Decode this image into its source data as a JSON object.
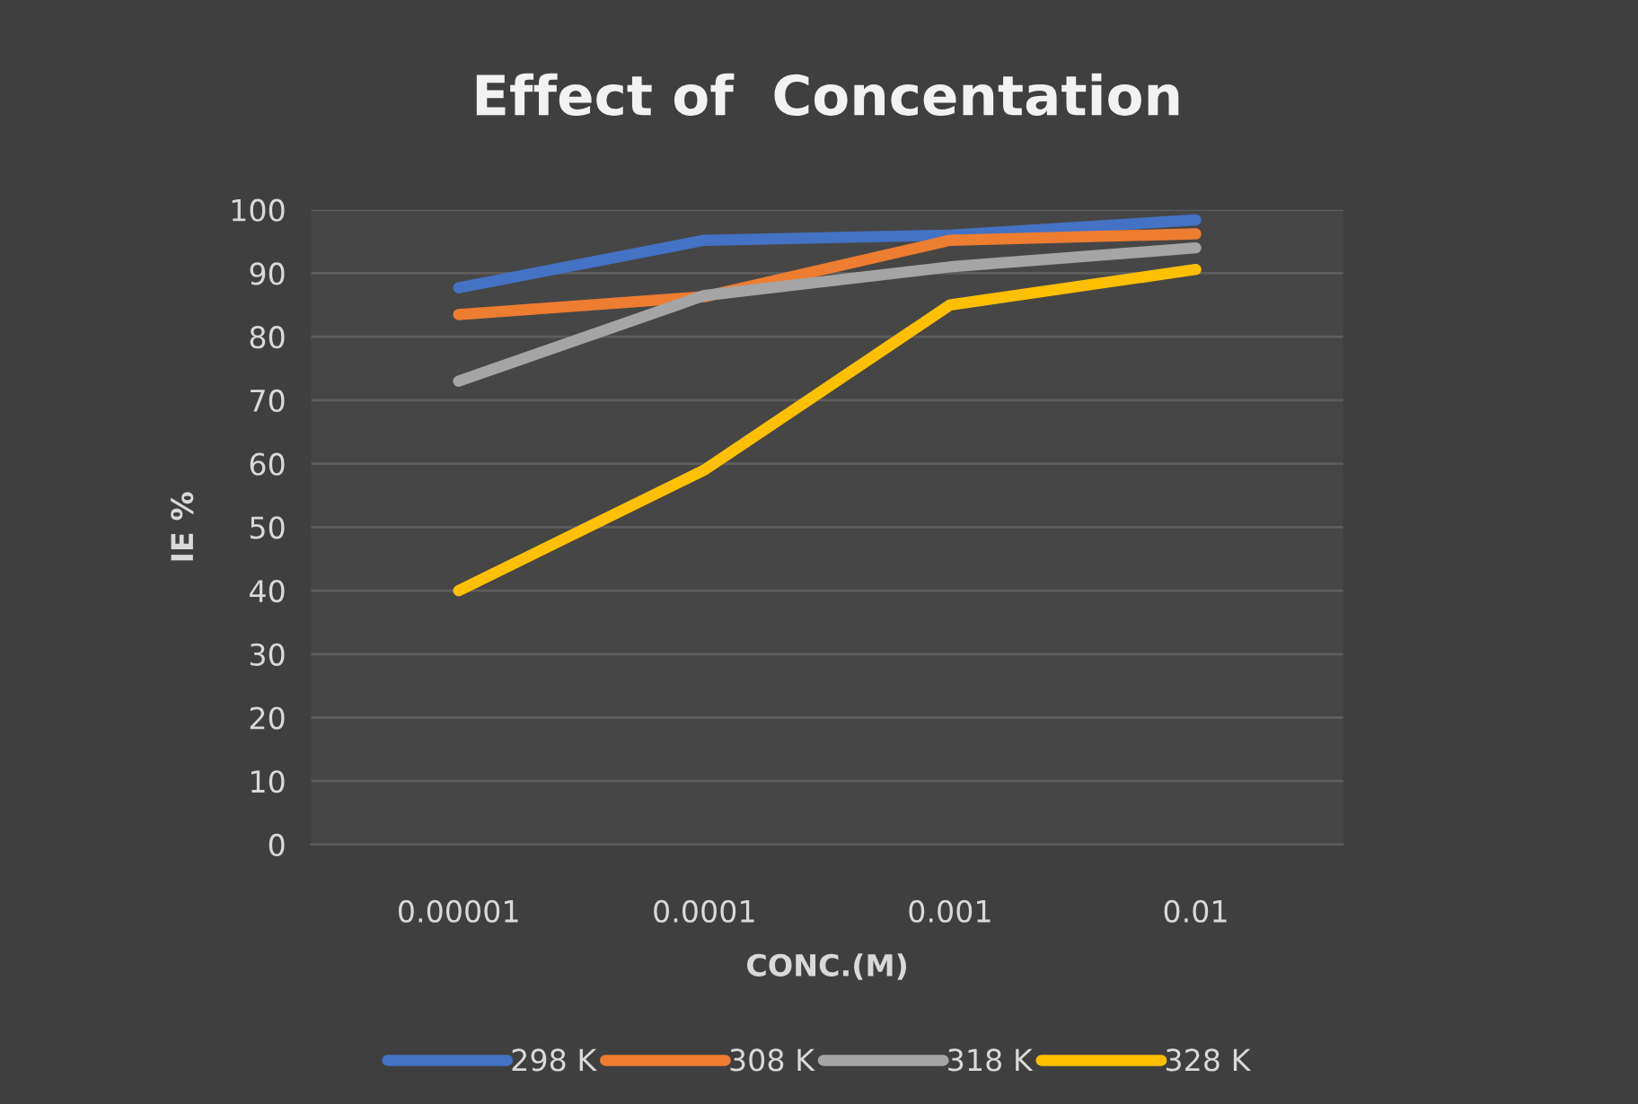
{
  "chart_data": {
    "type": "line",
    "title": "Effect of  Concentation",
    "xlabel": "CONC.(M)",
    "ylabel": "IE %",
    "categories": [
      "0.00001",
      "0.0001",
      "0.001",
      "0.01"
    ],
    "series": [
      {
        "name": "298 K",
        "color": "#4472c4",
        "values": [
          87.7,
          95.2,
          96,
          98.4
        ]
      },
      {
        "name": "308 K",
        "color": "#ed7d31",
        "values": [
          83.5,
          86.3,
          95.2,
          96.2
        ]
      },
      {
        "name": "318 K",
        "color": "#a5a5a5",
        "values": [
          73,
          86.5,
          91,
          94
        ]
      },
      {
        "name": "328 K",
        "color": "#ffc000",
        "values": [
          40,
          59,
          85,
          90.6
        ]
      }
    ],
    "ylim": [
      0,
      100
    ],
    "yticks": [
      0,
      10,
      20,
      30,
      40,
      50,
      60,
      70,
      80,
      90,
      100
    ],
    "grid": "y",
    "legend": "bottom",
    "marker": "none",
    "line_style": "solid"
  }
}
